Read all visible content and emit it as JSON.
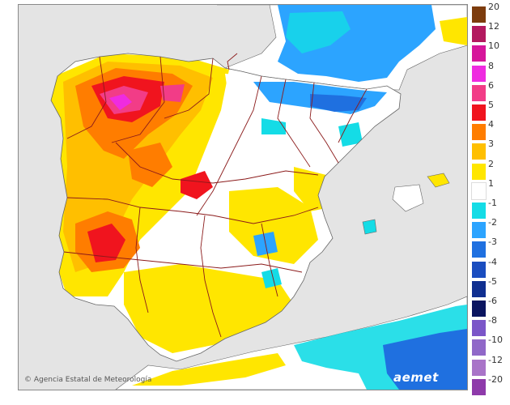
{
  "credit": {
    "symbol": "©",
    "text": "Agencia Estatal de Meteorología"
  },
  "logo": {
    "text": "aemet"
  },
  "legend": {
    "classes": [
      {
        "label": "20",
        "color": "#7d3c0d"
      },
      {
        "label": "12",
        "color": "#b3195f"
      },
      {
        "label": "10",
        "color": "#d6169b"
      },
      {
        "label": "8",
        "color": "#ef2be0"
      },
      {
        "label": "6",
        "color": "#f23c87"
      },
      {
        "label": "5",
        "color": "#f0141e"
      },
      {
        "label": "4",
        "color": "#ff7d00"
      },
      {
        "label": "3",
        "color": "#ffbf00"
      },
      {
        "label": "2",
        "color": "#ffe600"
      },
      {
        "label": "1",
        "color": "#ffffff"
      },
      {
        "label": "-1",
        "color": "#14dce6"
      },
      {
        "label": "-2",
        "color": "#2ca4ff"
      },
      {
        "label": "-3",
        "color": "#1f70e0"
      },
      {
        "label": "-4",
        "color": "#1a4dbf"
      },
      {
        "label": "-5",
        "color": "#102f90"
      },
      {
        "label": "-6",
        "color": "#0b1560"
      },
      {
        "label": "-8",
        "color": "#7b56c8"
      },
      {
        "label": "-10",
        "color": "#9068c8"
      },
      {
        "label": "-12",
        "color": "#a974c8"
      },
      {
        "label": "-20",
        "color": "#8e3aaa"
      }
    ],
    "thin_white_gap_after": "1"
  },
  "map_colors": {
    "sea": "#e4e4e4",
    "land_neutral": "#ffffff",
    "border": "#8b1a1a",
    "coast": "#666666"
  }
}
